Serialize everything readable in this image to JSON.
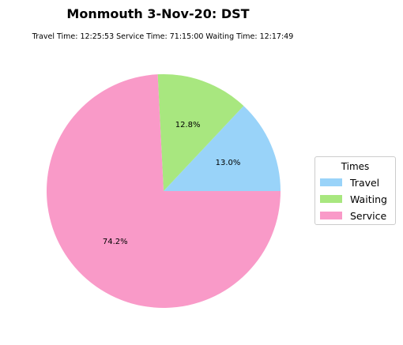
{
  "chart_data": {
    "type": "pie",
    "title": "Monmouth 3-Nov-20: DST",
    "subtitle": "Travel Time: 12:25:53  Service Time: 71:15:00  Waiting Time: 12:17:49",
    "slices": [
      {
        "label": "Travel",
        "value": 13.0,
        "pct_label": "13.0%",
        "color": "#99d3f9"
      },
      {
        "label": "Waiting",
        "value": 12.8,
        "pct_label": "12.8%",
        "color": "#a8e77f"
      },
      {
        "label": "Service",
        "value": 74.2,
        "pct_label": "74.2%",
        "color": "#f99ac8"
      }
    ],
    "legend": {
      "title": "Times",
      "placement": "right"
    }
  }
}
